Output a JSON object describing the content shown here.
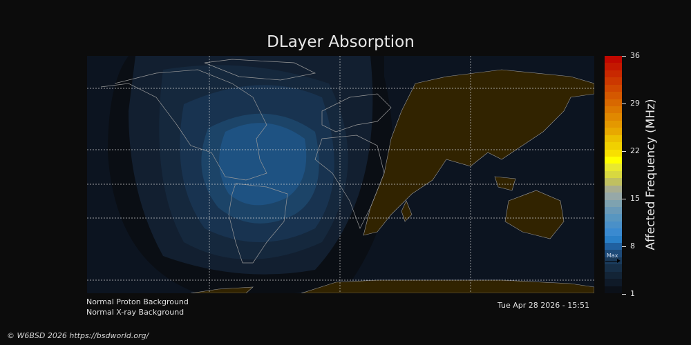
{
  "title": "DLayer Absorption",
  "colorbar": {
    "label": "Affected Frequency (MHz)",
    "ticks": [
      "36",
      "29",
      "22",
      "15",
      "8",
      "1"
    ],
    "range": [
      1,
      36
    ],
    "max_marker_label": "Max",
    "max_value": 5.5
  },
  "notes": {
    "proton": "Normal Proton Background",
    "xray": "Normal X-ray Background",
    "timestamp": "Tue Apr 28 2026 - 15:51"
  },
  "copyright": "© W6BSD 2026 https://bsdworld.org/",
  "colors": {
    "night_land": "#312300",
    "ocean": "#0c1420",
    "coast": "#9a9a9a",
    "background": "#0c0c0c"
  }
}
